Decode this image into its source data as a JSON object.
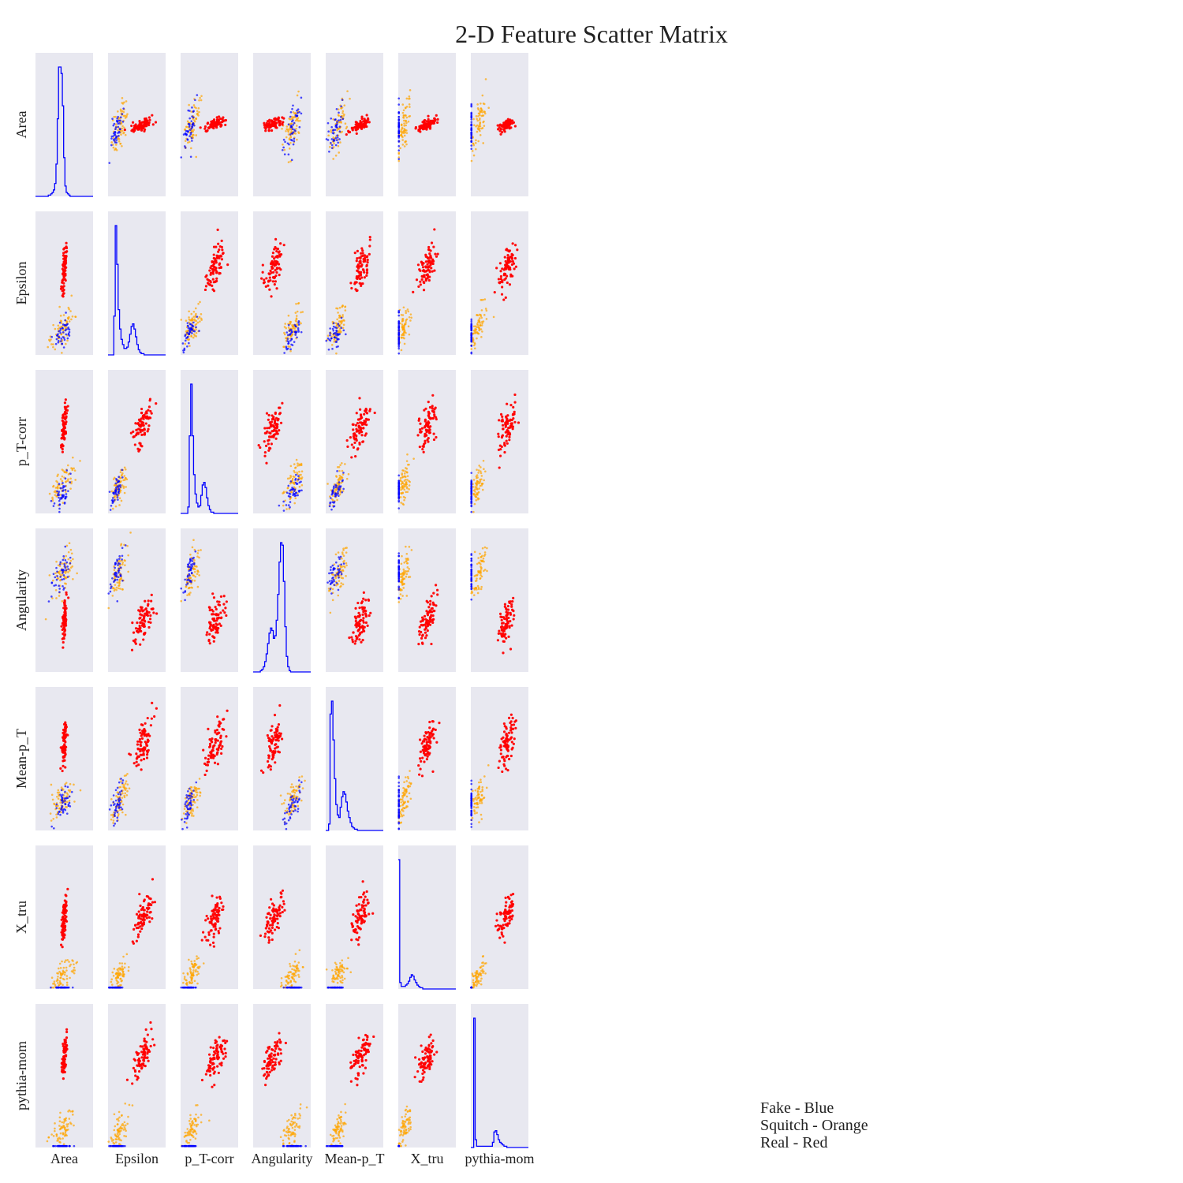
{
  "chart_data": {
    "type": "scatter",
    "title": "2-D Feature Scatter Matrix",
    "variables": [
      "Area",
      "Epsilon",
      "p_T-corr",
      "Angularity",
      "Mean-p_T",
      "X_tru",
      "pythia-mom"
    ],
    "series": [
      {
        "name": "Fake",
        "color": "#0000ff"
      },
      {
        "name": "Squitch",
        "color": "#ffa500"
      },
      {
        "name": "Real",
        "color": "#ff0000"
      }
    ],
    "legend": [
      "Fake - Blue",
      "Squitch - Orange",
      "Real - Red"
    ],
    "legend_position": "bottom-right",
    "diagonal": "histogram",
    "histogram_color": "#0000ff",
    "panel_background": "#e8e8f0",
    "grid": false,
    "distributions": {
      "Area": {
        "Fake": {
          "mean": 0.47,
          "sd": 0.12
        },
        "Squitch": {
          "mean": 0.48,
          "sd": 0.14
        },
        "Real": {
          "mean": 0.5,
          "sd": 0.03
        }
      },
      "Epsilon": {
        "Fake": {
          "mean": 0.15,
          "sd": 0.08
        },
        "Squitch": {
          "mean": 0.2,
          "sd": 0.1
        },
        "Real": {
          "mean": 0.6,
          "sd": 0.12
        }
      },
      "p_T-corr": {
        "Fake": {
          "mean": 0.15,
          "sd": 0.08
        },
        "Squitch": {
          "mean": 0.2,
          "sd": 0.1
        },
        "Real": {
          "mean": 0.6,
          "sd": 0.12
        }
      },
      "Angularity": {
        "Fake": {
          "mean": 0.7,
          "sd": 0.1
        },
        "Squitch": {
          "mean": 0.68,
          "sd": 0.12
        },
        "Real": {
          "mean": 0.35,
          "sd": 0.12
        }
      },
      "Mean-p_T": {
        "Fake": {
          "mean": 0.18,
          "sd": 0.1
        },
        "Squitch": {
          "mean": 0.22,
          "sd": 0.1
        },
        "Real": {
          "mean": 0.6,
          "sd": 0.12
        }
      },
      "X_tru": {
        "Fake": {
          "mean": 0.0,
          "sd": 0.0
        },
        "Squitch": {
          "mean": 0.1,
          "sd": 0.08
        },
        "Real": {
          "mean": 0.5,
          "sd": 0.11
        }
      },
      "pythia-mom": {
        "Fake": {
          "mean": 0.0,
          "sd": 0.0
        },
        "Squitch": {
          "mean": 0.13,
          "sd": 0.09
        },
        "Real": {
          "mean": 0.62,
          "sd": 0.11
        }
      }
    },
    "diagonal_histograms": {
      "Area": [
        0,
        0,
        0,
        0,
        0,
        0,
        0,
        0,
        0,
        0,
        1,
        1,
        2,
        3,
        5,
        10,
        25,
        60,
        100,
        100,
        95,
        70,
        30,
        8,
        3,
        2,
        1,
        0,
        0,
        0,
        0,
        0,
        0,
        0,
        0,
        0,
        0,
        0,
        0,
        0,
        0,
        0,
        0,
        0,
        0
      ],
      "Epsilon": [
        0,
        0,
        0,
        0,
        30,
        100,
        70,
        35,
        20,
        12,
        8,
        5,
        5,
        6,
        10,
        16,
        22,
        24,
        20,
        14,
        8,
        4,
        2,
        1,
        1,
        0,
        0,
        0,
        0,
        0,
        0,
        0,
        0,
        0,
        0,
        0,
        0,
        0,
        0,
        0
      ],
      "p_T-corr": [
        0,
        0,
        0,
        0,
        0,
        5,
        60,
        100,
        60,
        30,
        15,
        8,
        5,
        6,
        14,
        22,
        24,
        20,
        12,
        6,
        3,
        1,
        1,
        0,
        0,
        0,
        0,
        0,
        0,
        0,
        0,
        0,
        0,
        0,
        0,
        0,
        0,
        0,
        0,
        0
      ],
      "Angularity": [
        0,
        0,
        0,
        0,
        0,
        1,
        2,
        4,
        8,
        14,
        22,
        30,
        34,
        32,
        26,
        28,
        40,
        60,
        85,
        100,
        98,
        70,
        35,
        12,
        4,
        1,
        0,
        0,
        0,
        0,
        0,
        0,
        0,
        0,
        0,
        0,
        0,
        0,
        0,
        0
      ],
      "Mean-p_T": [
        0,
        0,
        5,
        90,
        100,
        70,
        40,
        20,
        12,
        10,
        18,
        26,
        30,
        28,
        22,
        15,
        10,
        6,
        3,
        2,
        1,
        1,
        0,
        0,
        0,
        0,
        0,
        0,
        0,
        0,
        0,
        0,
        0,
        0,
        0,
        0,
        0,
        0,
        0,
        0
      ],
      "X_tru": [
        100,
        5,
        2,
        2,
        2,
        3,
        4,
        6,
        9,
        11,
        10,
        7,
        5,
        3,
        2,
        1,
        1,
        0,
        0,
        0,
        0,
        0,
        0,
        0,
        0,
        0,
        0,
        0,
        0,
        0,
        0,
        0,
        0,
        0,
        0,
        0,
        0,
        0,
        0,
        0
      ],
      "pythia-mom": [
        0,
        0,
        100,
        6,
        1,
        1,
        1,
        1,
        1,
        1,
        1,
        1,
        1,
        1,
        1,
        4,
        12,
        13,
        10,
        6,
        4,
        3,
        2,
        1,
        1,
        0,
        0,
        0,
        0,
        0,
        0,
        0,
        0,
        0,
        0,
        0,
        0,
        0,
        0,
        0
      ]
    }
  }
}
